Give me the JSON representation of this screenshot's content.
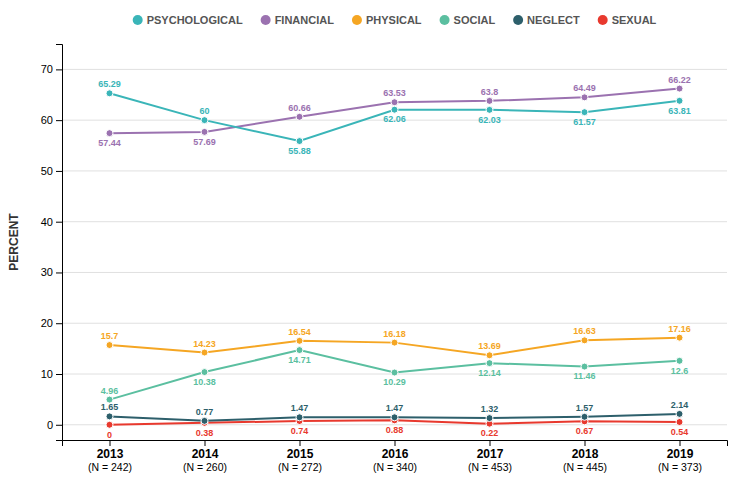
{
  "chart_data": {
    "type": "line",
    "categories": [
      "2013\n(N = 242)",
      "2014\n(N = 260)",
      "2015\n(N = 272)",
      "2016\n(N = 340)",
      "2017\n(N = 453)",
      "2018\n(N = 445)",
      "2019\n(N = 373)"
    ],
    "ylabel": "PERCENT",
    "series": [
      {
        "name": "PSYCHOLOGICAL",
        "color": "#3ab5b8",
        "values": [
          65.29,
          60.0,
          55.88,
          62.06,
          62.03,
          61.57,
          63.81
        ]
      },
      {
        "name": "FINANCIAL",
        "color": "#9b72b0",
        "values": [
          57.44,
          57.69,
          60.66,
          63.53,
          63.8,
          64.49,
          66.22
        ]
      },
      {
        "name": "PHYSICAL",
        "color": "#f5a623",
        "values": [
          15.7,
          14.23,
          16.54,
          16.18,
          13.69,
          16.63,
          17.16
        ]
      },
      {
        "name": "SOCIAL",
        "color": "#5bbfa0",
        "values": [
          4.96,
          10.38,
          14.71,
          10.29,
          12.14,
          11.46,
          12.6
        ]
      },
      {
        "name": "NEGLECT",
        "color": "#2d5f6b",
        "values": [
          1.65,
          0.77,
          1.47,
          1.47,
          1.32,
          1.57,
          2.14
        ]
      },
      {
        "name": "SEXUAL",
        "color": "#e8392e",
        "values": [
          0.0,
          0.38,
          0.74,
          0.88,
          0.22,
          0.67,
          0.54
        ]
      }
    ],
    "ylim": [
      -3,
      75
    ],
    "yticks": [
      0,
      10,
      20,
      30,
      40,
      50,
      60,
      70
    ],
    "grid": true,
    "legend": "top",
    "data_labels": true,
    "marker": "circle"
  }
}
